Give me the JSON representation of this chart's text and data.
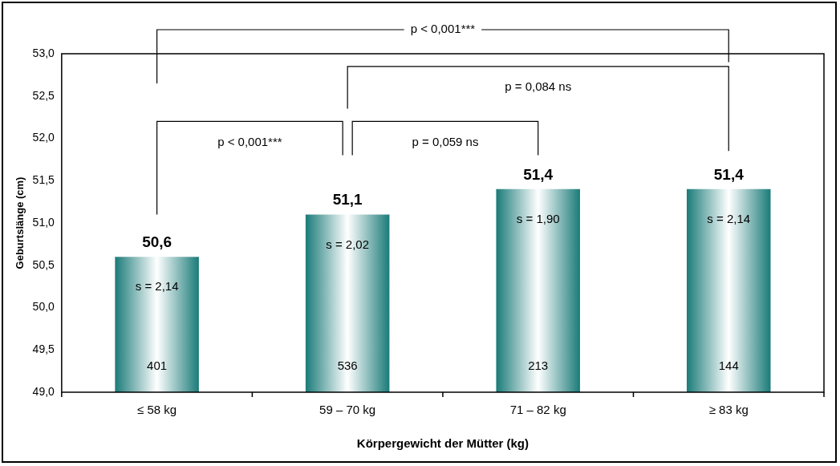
{
  "chart_data": {
    "type": "bar",
    "xlabel": "Körpergewicht der Mütter (kg)",
    "ylabel": "Geburtslänge (cm)",
    "categories": [
      "≤ 58 kg",
      "59 – 70 kg",
      "71 – 82 kg",
      "≥ 83 kg"
    ],
    "values": [
      50.6,
      51.1,
      51.4,
      51.4
    ],
    "color": "#1a7b79",
    "value_labels": [
      "50,6",
      "51,1",
      "51,4",
      "51,4"
    ],
    "ylim": [
      49,
      53
    ],
    "yticks": [
      {
        "value": 49,
        "label": "49,0"
      },
      {
        "value": 49.5,
        "label": "49,5"
      },
      {
        "value": 50,
        "label": "50,0"
      },
      {
        "value": 50.5,
        "label": "50,5"
      },
      {
        "value": 51,
        "label": "51,0"
      },
      {
        "value": 51.5,
        "label": "51,5"
      },
      {
        "value": 52,
        "label": "52,0"
      },
      {
        "value": 52.5,
        "label": "52,5"
      },
      {
        "value": 53,
        "label": "53,0"
      }
    ],
    "grid": false,
    "legend": false,
    "annotations": [
      "s = 2,14",
      "s = 2,02",
      "s = 1,90",
      "s = 2,14",
      "401",
      "536",
      "213",
      "144",
      "p < 0,001***",
      "p = 0,084 ns",
      "p < 0,001***",
      "p = 0,059 ns"
    ]
  }
}
